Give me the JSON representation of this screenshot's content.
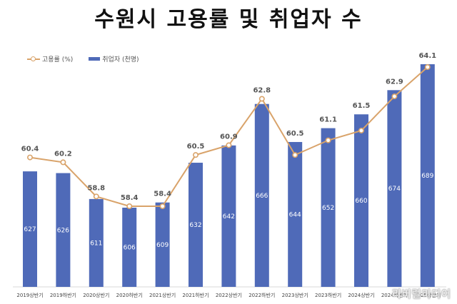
{
  "title": "수원시 고용률 및 취업자 수",
  "legend": {
    "line_label": "고용률 (%)",
    "bar_label": "취업자 (천명)"
  },
  "colors": {
    "bar": "#4f6ab8",
    "line": "#d9a36a"
  },
  "watermark": "리버럴미디어",
  "chart_data": {
    "type": "bar+line",
    "title": "수원시 고용률 및 취업자 수",
    "categories": [
      "2019상반기",
      "2019하반기",
      "2020상반기",
      "2020하반기",
      "2021상반기",
      "2021하반기",
      "2022상반기",
      "2022하반기",
      "2023상반기",
      "2023하반기",
      "2024상반기",
      "2024하반기",
      "2025상반기"
    ],
    "series": [
      {
        "name": "취업자 (천명)",
        "type": "bar",
        "values": [
          627,
          626,
          611,
          606,
          609,
          632,
          642,
          666,
          644,
          652,
          660,
          674,
          689
        ]
      },
      {
        "name": "고용률 (%)",
        "type": "line",
        "values": [
          60.4,
          60.2,
          58.8,
          58.4,
          58.4,
          60.5,
          60.9,
          62.8,
          60.5,
          61.1,
          61.5,
          62.9,
          64.1
        ]
      }
    ],
    "xlabel": "",
    "ylabel": "",
    "grid": false,
    "legend_position": "top-left"
  }
}
